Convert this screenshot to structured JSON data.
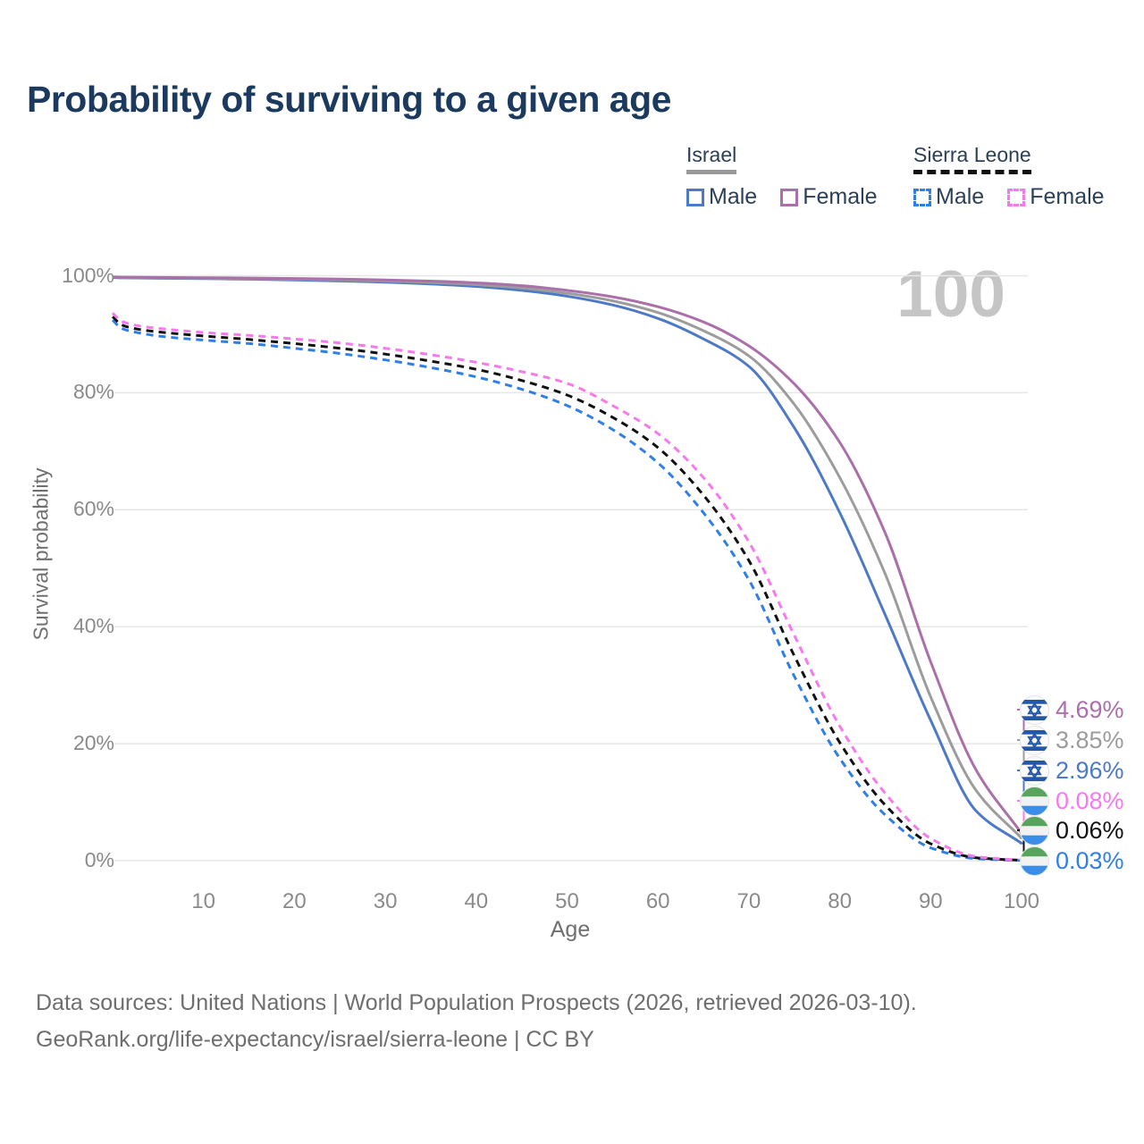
{
  "title": "Probability of surviving to a given age",
  "legend": {
    "groups": [
      {
        "name": "Israel",
        "line_style": "solid",
        "items": [
          {
            "label": "Male"
          },
          {
            "label": "Female"
          }
        ]
      },
      {
        "name": "Sierra Leone",
        "line_style": "dashed",
        "items": [
          {
            "label": "Male"
          },
          {
            "label": "Female"
          }
        ]
      }
    ]
  },
  "chart_data": {
    "type": "line",
    "title": "Probability of surviving to a given age",
    "xlabel": "Age",
    "ylabel": "Survival probability",
    "xlim": [
      0,
      100
    ],
    "ylim": [
      0,
      100
    ],
    "grid": "horizontal",
    "legend_position": "top-right",
    "age_marker": "100",
    "x_ticks": [
      10,
      20,
      30,
      40,
      50,
      60,
      70,
      80,
      90,
      100
    ],
    "y_ticks": [
      {
        "value": 0,
        "label": "0%"
      },
      {
        "value": 20,
        "label": "20%"
      },
      {
        "value": 40,
        "label": "40%"
      },
      {
        "value": 60,
        "label": "60%"
      },
      {
        "value": 80,
        "label": "80%"
      },
      {
        "value": 100,
        "label": "100%"
      }
    ],
    "ages": [
      0,
      1,
      3,
      5,
      10,
      15,
      20,
      25,
      30,
      35,
      40,
      45,
      50,
      55,
      60,
      65,
      70,
      75,
      80,
      85,
      90,
      95,
      100
    ],
    "series": [
      {
        "id": "israel-female",
        "country": "Israel",
        "sex": "Female",
        "color": "#ab6fa9",
        "dash": false,
        "end_label": "4.69%",
        "values": [
          99.8,
          99.76,
          99.73,
          99.71,
          99.66,
          99.6,
          99.52,
          99.42,
          99.28,
          99.08,
          98.78,
          98.3,
          97.5,
          96.4,
          94.7,
          92.1,
          88.0,
          81.5,
          71.5,
          56.0,
          34.0,
          15.5,
          4.69
        ]
      },
      {
        "id": "israel-combined",
        "country": "Israel",
        "sex": "Both",
        "color": "#9c9c9c",
        "dash": false,
        "end_label": "3.85%",
        "values": [
          99.75,
          99.7,
          99.66,
          99.63,
          99.57,
          99.5,
          99.4,
          99.26,
          99.09,
          98.84,
          98.47,
          97.9,
          97.0,
          95.7,
          93.7,
          90.6,
          86.3,
          78.0,
          65.5,
          49.0,
          28.0,
          12.0,
          3.85
        ]
      },
      {
        "id": "israel-male",
        "country": "Israel",
        "sex": "Male",
        "color": "#4d79c6",
        "dash": false,
        "end_label": "2.96%",
        "values": [
          99.7,
          99.64,
          99.6,
          99.56,
          99.5,
          99.4,
          99.28,
          99.1,
          98.9,
          98.6,
          98.16,
          97.5,
          96.5,
          95.0,
          92.7,
          89.2,
          84.5,
          74.0,
          59.5,
          42.0,
          24.0,
          8.5,
          2.96
        ]
      },
      {
        "id": "sierra-leone-female",
        "country": "Sierra Leone",
        "sex": "Female",
        "color": "#f67aeb",
        "dash": true,
        "end_label": "0.08%",
        "values": [
          93.6,
          92.2,
          91.4,
          91.0,
          90.3,
          89.8,
          89.2,
          88.5,
          87.6,
          86.5,
          85.2,
          83.6,
          81.6,
          77.8,
          73.0,
          65.5,
          54.5,
          38.5,
          23.0,
          11.5,
          3.8,
          0.7,
          0.08
        ]
      },
      {
        "id": "sierra-leone-combined",
        "country": "Sierra Leone",
        "sex": "Both",
        "color": "#111111",
        "dash": true,
        "end_label": "0.06%",
        "values": [
          93.0,
          91.6,
          90.8,
          90.4,
          89.7,
          89.1,
          88.4,
          87.6,
          86.6,
          85.4,
          84.0,
          82.1,
          79.6,
          75.8,
          70.6,
          62.5,
          51.3,
          35.0,
          20.2,
          9.5,
          2.9,
          0.5,
          0.06
        ]
      },
      {
        "id": "sierra-leone-male",
        "country": "Sierra Leone",
        "sex": "Male",
        "color": "#2f7fe8",
        "dash": true,
        "end_label": "0.03%",
        "values": [
          92.4,
          91.0,
          90.2,
          89.7,
          89.0,
          88.4,
          87.6,
          86.7,
          85.6,
          84.3,
          82.7,
          80.6,
          77.8,
          73.7,
          68.0,
          59.5,
          48.0,
          31.5,
          17.5,
          7.8,
          2.2,
          0.35,
          0.03
        ]
      }
    ]
  },
  "footer": {
    "line1": "Data sources: United Nations | World Population Prospects (2026, retrieved 2026-03-10).",
    "line2": "GeoRank.org/life-expectancy/israel/sierra-leone | CC BY"
  }
}
